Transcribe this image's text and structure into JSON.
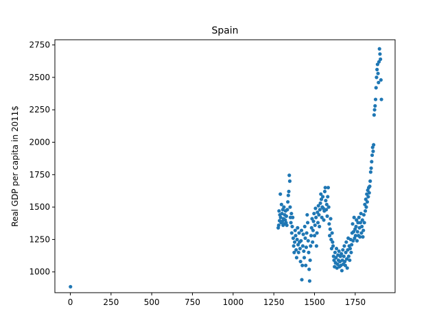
{
  "chart_data": {
    "type": "scatter",
    "title": "Spain",
    "xlabel": "",
    "ylabel": "Real GDP per capita in 2011$",
    "xlim": [
      -95,
      1995
    ],
    "ylim": [
      840,
      2790
    ],
    "xticks": [
      0,
      250,
      500,
      750,
      1000,
      1250,
      1500,
      1750
    ],
    "yticks": [
      1000,
      1250,
      1500,
      1750,
      2000,
      2250,
      2500,
      2750
    ],
    "grid": false,
    "point_color": "#1f77b4",
    "points": [
      [
        1,
        886
      ],
      [
        1277,
        1340
      ],
      [
        1280,
        1360
      ],
      [
        1282,
        1470
      ],
      [
        1285,
        1395
      ],
      [
        1287,
        1440
      ],
      [
        1290,
        1600
      ],
      [
        1292,
        1420
      ],
      [
        1295,
        1380
      ],
      [
        1297,
        1520
      ],
      [
        1300,
        1450
      ],
      [
        1302,
        1390
      ],
      [
        1305,
        1480
      ],
      [
        1307,
        1360
      ],
      [
        1310,
        1410
      ],
      [
        1312,
        1500
      ],
      [
        1315,
        1370
      ],
      [
        1317,
        1440
      ],
      [
        1320,
        1400
      ],
      [
        1322,
        1470
      ],
      [
        1325,
        1380
      ],
      [
        1327,
        1430
      ],
      [
        1330,
        1360
      ],
      [
        1333,
        1480
      ],
      [
        1336,
        1540
      ],
      [
        1339,
        1590
      ],
      [
        1342,
        1620
      ],
      [
        1345,
        1745
      ],
      [
        1348,
        1700
      ],
      [
        1350,
        1500
      ],
      [
        1352,
        1420
      ],
      [
        1355,
        1380
      ],
      [
        1358,
        1450
      ],
      [
        1360,
        1300
      ],
      [
        1363,
        1350
      ],
      [
        1366,
        1420
      ],
      [
        1369,
        1260
      ],
      [
        1372,
        1200
      ],
      [
        1375,
        1150
      ],
      [
        1378,
        1230
      ],
      [
        1381,
        1320
      ],
      [
        1384,
        1280
      ],
      [
        1387,
        1170
      ],
      [
        1390,
        1110
      ],
      [
        1393,
        1250
      ],
      [
        1396,
        1340
      ],
      [
        1399,
        1210
      ],
      [
        1402,
        1150
      ],
      [
        1405,
        1300
      ],
      [
        1408,
        1230
      ],
      [
        1411,
        1180
      ],
      [
        1414,
        1080
      ],
      [
        1417,
        1240
      ],
      [
        1420,
        1320
      ],
      [
        1422,
        940
      ],
      [
        1425,
        1050
      ],
      [
        1428,
        1200
      ],
      [
        1431,
        1290
      ],
      [
        1434,
        1160
      ],
      [
        1437,
        1110
      ],
      [
        1440,
        1350
      ],
      [
        1443,
        1260
      ],
      [
        1446,
        1050
      ],
      [
        1449,
        1190
      ],
      [
        1452,
        1300
      ],
      [
        1455,
        1440
      ],
      [
        1458,
        1380
      ],
      [
        1461,
        1240
      ],
      [
        1464,
        1150
      ],
      [
        1467,
        1020
      ],
      [
        1470,
        930
      ],
      [
        1473,
        1090
      ],
      [
        1476,
        1200
      ],
      [
        1479,
        1280
      ],
      [
        1482,
        1340
      ],
      [
        1485,
        1410
      ],
      [
        1488,
        1230
      ],
      [
        1491,
        1320
      ],
      [
        1494,
        1390
      ],
      [
        1497,
        1450
      ],
      [
        1500,
        1280
      ],
      [
        1503,
        1360
      ],
      [
        1506,
        1490
      ],
      [
        1509,
        1420
      ],
      [
        1512,
        1200
      ],
      [
        1515,
        1300
      ],
      [
        1518,
        1460
      ],
      [
        1521,
        1380
      ],
      [
        1524,
        1510
      ],
      [
        1527,
        1440
      ],
      [
        1530,
        1350
      ],
      [
        1533,
        1480
      ],
      [
        1536,
        1530
      ],
      [
        1539,
        1600
      ],
      [
        1542,
        1560
      ],
      [
        1545,
        1420
      ],
      [
        1548,
        1500
      ],
      [
        1551,
        1580
      ],
      [
        1554,
        1490
      ],
      [
        1557,
        1400
      ],
      [
        1560,
        1470
      ],
      [
        1563,
        1620
      ],
      [
        1566,
        1650
      ],
      [
        1569,
        1550
      ],
      [
        1572,
        1480
      ],
      [
        1575,
        1520
      ],
      [
        1578,
        1430
      ],
      [
        1581,
        1580
      ],
      [
        1584,
        1650
      ],
      [
        1587,
        1500
      ],
      [
        1590,
        1370
      ],
      [
        1593,
        1280
      ],
      [
        1596,
        1330
      ],
      [
        1599,
        1410
      ],
      [
        1602,
        1250
      ],
      [
        1605,
        1180
      ],
      [
        1608,
        1300
      ],
      [
        1611,
        1230
      ],
      [
        1614,
        1200
      ],
      [
        1617,
        1120
      ],
      [
        1620,
        1090
      ],
      [
        1623,
        1040
      ],
      [
        1626,
        1150
      ],
      [
        1629,
        1070
      ],
      [
        1632,
        1110
      ],
      [
        1635,
        1180
      ],
      [
        1638,
        1030
      ],
      [
        1641,
        1060
      ],
      [
        1644,
        1130
      ],
      [
        1647,
        1090
      ],
      [
        1650,
        1160
      ],
      [
        1653,
        1040
      ],
      [
        1656,
        1080
      ],
      [
        1659,
        1120
      ],
      [
        1662,
        1050
      ],
      [
        1665,
        1140
      ],
      [
        1668,
        1010
      ],
      [
        1671,
        1090
      ],
      [
        1674,
        1170
      ],
      [
        1677,
        1060
      ],
      [
        1680,
        1120
      ],
      [
        1683,
        1200
      ],
      [
        1686,
        1080
      ],
      [
        1689,
        1050
      ],
      [
        1692,
        1150
      ],
      [
        1695,
        1230
      ],
      [
        1698,
        1100
      ],
      [
        1701,
        1030
      ],
      [
        1704,
        1170
      ],
      [
        1707,
        1260
      ],
      [
        1710,
        1120
      ],
      [
        1713,
        1200
      ],
      [
        1716,
        1090
      ],
      [
        1719,
        1180
      ],
      [
        1722,
        1250
      ],
      [
        1725,
        1150
      ],
      [
        1728,
        1210
      ],
      [
        1731,
        1300
      ],
      [
        1734,
        1370
      ],
      [
        1737,
        1240
      ],
      [
        1740,
        1310
      ],
      [
        1743,
        1420
      ],
      [
        1746,
        1260
      ],
      [
        1749,
        1330
      ],
      [
        1752,
        1280
      ],
      [
        1755,
        1350
      ],
      [
        1758,
        1400
      ],
      [
        1761,
        1240
      ],
      [
        1764,
        1310
      ],
      [
        1767,
        1380
      ],
      [
        1770,
        1280
      ],
      [
        1773,
        1420
      ],
      [
        1776,
        1340
      ],
      [
        1779,
        1270
      ],
      [
        1782,
        1380
      ],
      [
        1785,
        1450
      ],
      [
        1788,
        1300
      ],
      [
        1791,
        1350
      ],
      [
        1794,
        1400
      ],
      [
        1797,
        1270
      ],
      [
        1800,
        1320
      ],
      [
        1803,
        1440
      ],
      [
        1806,
        1380
      ],
      [
        1809,
        1520
      ],
      [
        1812,
        1470
      ],
      [
        1815,
        1560
      ],
      [
        1818,
        1500
      ],
      [
        1821,
        1600
      ],
      [
        1824,
        1540
      ],
      [
        1827,
        1630
      ],
      [
        1830,
        1580
      ],
      [
        1833,
        1650
      ],
      [
        1836,
        1610
      ],
      [
        1839,
        1660
      ],
      [
        1842,
        1700
      ],
      [
        1845,
        1770
      ],
      [
        1848,
        1800
      ],
      [
        1851,
        1850
      ],
      [
        1854,
        1900
      ],
      [
        1857,
        1960
      ],
      [
        1860,
        1930
      ],
      [
        1863,
        1980
      ],
      [
        1866,
        2210
      ],
      [
        1869,
        2250
      ],
      [
        1872,
        2280
      ],
      [
        1875,
        2330
      ],
      [
        1878,
        2420
      ],
      [
        1881,
        2500
      ],
      [
        1884,
        2560
      ],
      [
        1887,
        2600
      ],
      [
        1890,
        2530
      ],
      [
        1893,
        2460
      ],
      [
        1896,
        2620
      ],
      [
        1899,
        2720
      ],
      [
        1902,
        2680
      ],
      [
        1905,
        2640
      ],
      [
        1908,
        2480
      ],
      [
        1911,
        2330
      ]
    ]
  }
}
